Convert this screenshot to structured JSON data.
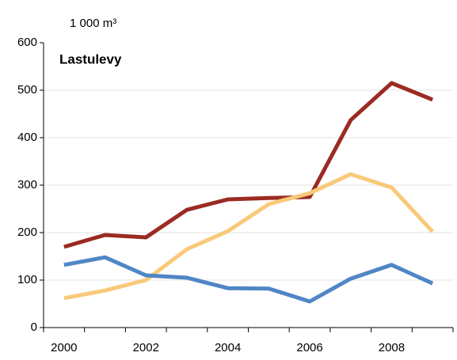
{
  "chart_data": {
    "type": "line",
    "title": "Lastulevy",
    "y_label": "1 000 m³",
    "categories": [
      "2000",
      null,
      "2002",
      null,
      "2004",
      null,
      "2006",
      null,
      "2008",
      null
    ],
    "series": [
      {
        "color": "#9b2b22",
        "values": [
          170,
          195,
          190,
          248,
          270,
          273,
          275,
          437,
          515,
          480
        ]
      },
      {
        "color": "#f9c97a",
        "values": [
          62,
          78,
          100,
          165,
          203,
          260,
          283,
          323,
          295,
          202
        ]
      },
      {
        "color": "#4f86c6",
        "values": [
          132,
          148,
          110,
          105,
          83,
          82,
          55,
          103,
          132,
          93
        ]
      }
    ],
    "ylim": [
      0,
      600
    ],
    "yticks": [
      0,
      100,
      200,
      300,
      400,
      500,
      600
    ],
    "grid": true
  }
}
